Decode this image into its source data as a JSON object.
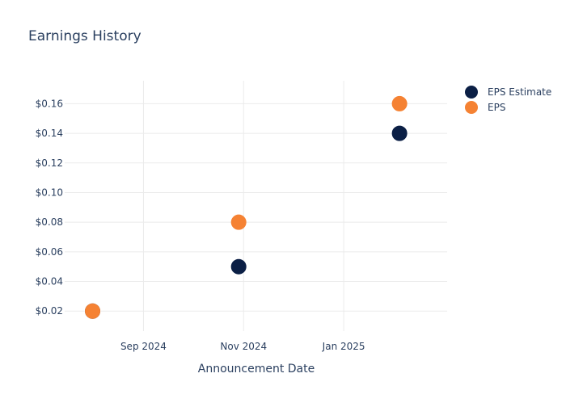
{
  "chart_data": {
    "type": "scatter",
    "title": "Earnings History",
    "xlabel": "Announcement Date",
    "ylabel": "",
    "x_ticks": [
      {
        "date": "2024-09-01",
        "label": "Sep 2024"
      },
      {
        "date": "2024-11-01",
        "label": "Nov 2024"
      },
      {
        "date": "2025-01-01",
        "label": "Jan 2025"
      }
    ],
    "xlim": [
      "2024-07-15",
      "2025-03-05"
    ],
    "y_ticks": [
      0.02,
      0.04,
      0.06,
      0.08,
      0.1,
      0.12,
      0.14,
      0.16
    ],
    "y_tick_labels": [
      "$0.02",
      "$0.04",
      "$0.06",
      "$0.08",
      "$0.10",
      "$0.12",
      "$0.14",
      "$0.16"
    ],
    "ylim": [
      0.0065,
      0.1755
    ],
    "grid": true,
    "legend_position": "top-right",
    "series": [
      {
        "name": "EPS Estimate",
        "color": "#0b1f45",
        "points": [
          {
            "x": "2024-08-01",
            "y": 0.02
          },
          {
            "x": "2024-10-29",
            "y": 0.05
          },
          {
            "x": "2025-02-04",
            "y": 0.14
          }
        ]
      },
      {
        "name": "EPS",
        "color": "#f58233",
        "points": [
          {
            "x": "2024-08-01",
            "y": 0.02
          },
          {
            "x": "2024-10-29",
            "y": 0.08
          },
          {
            "x": "2025-02-04",
            "y": 0.16
          }
        ]
      }
    ]
  }
}
